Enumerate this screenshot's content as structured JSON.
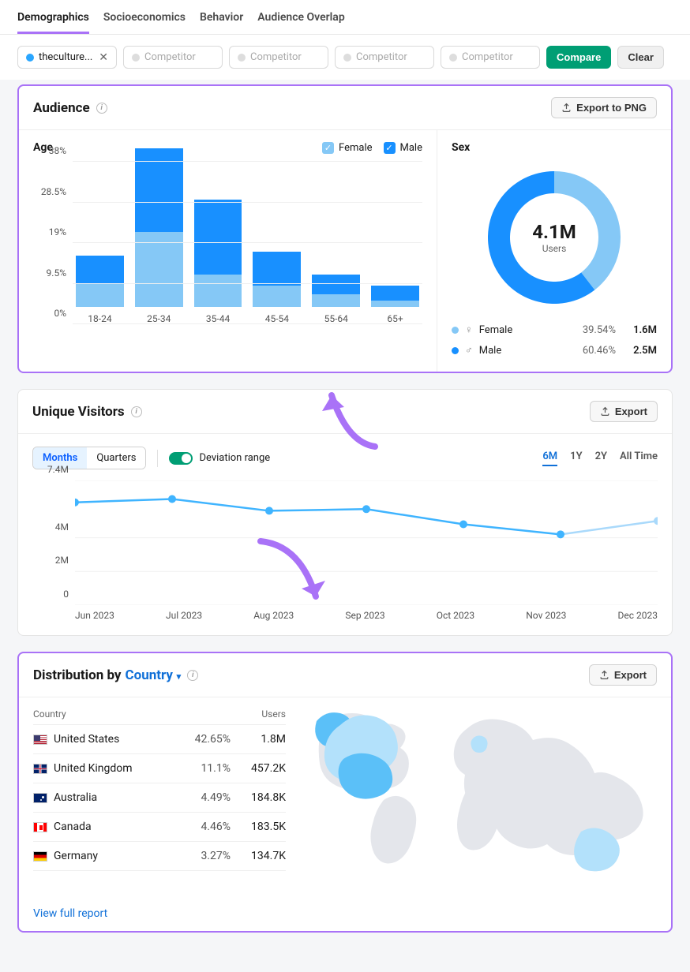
{
  "tabs": {
    "items": [
      "Demographics",
      "Socioeconomics",
      "Behavior",
      "Audience Overlap"
    ],
    "active_index": 0
  },
  "filters": {
    "site_chip": {
      "label": "theculture...",
      "dot_color": "#2aa6ff"
    },
    "competitor_placeholder": "Competitor",
    "compare_label": "Compare",
    "clear_label": "Clear"
  },
  "audience": {
    "title": "Audience",
    "export_label": "Export to PNG",
    "age": {
      "title": "Age",
      "legend": {
        "female": "Female",
        "male": "Male"
      },
      "type": "stacked-bar",
      "categories": [
        "18-24",
        "25-34",
        "35-44",
        "45-54",
        "55-64",
        "65+"
      ],
      "female_values": [
        5.5,
        17.5,
        7.5,
        5.0,
        3.0,
        1.5
      ],
      "male_values": [
        6.5,
        19.5,
        17.5,
        8.0,
        4.5,
        3.5
      ],
      "y_ticks": [
        0,
        9.5,
        19,
        28.5,
        38
      ],
      "y_tick_labels": [
        "0%",
        "9.5%",
        "19%",
        "28.5%",
        "38%"
      ],
      "ymax": 38,
      "colors": {
        "female": "#85c8f6",
        "male": "#1890ff"
      },
      "grid_color": "#efefef"
    },
    "sex": {
      "title": "Sex",
      "type": "donut",
      "center_value": "4.1M",
      "center_label": "Users",
      "segments": [
        {
          "name": "Female",
          "pct": 39.54,
          "pct_label": "39.54%",
          "count": "1.6M",
          "color": "#85c8f6",
          "symbol": "♀"
        },
        {
          "name": "Male",
          "pct": 60.46,
          "pct_label": "60.46%",
          "count": "2.5M",
          "color": "#1890ff",
          "symbol": "♂"
        }
      ],
      "donut_thickness": 28
    }
  },
  "unique_visitors": {
    "title": "Unique Visitors",
    "export_label": "Export",
    "period_segmented": {
      "options": [
        "Months",
        "Quarters"
      ],
      "active": 0
    },
    "deviation_label": "Deviation range",
    "ranges": [
      "6M",
      "1Y",
      "2Y",
      "All Time"
    ],
    "range_active": 0,
    "line": {
      "type": "line",
      "x_labels": [
        "Jun 2023",
        "Jul 2023",
        "Aug 2023",
        "Sep 2023",
        "Oct 2023",
        "Nov 2023",
        "Dec 2023"
      ],
      "y_ticks": [
        0,
        2,
        4,
        7.4
      ],
      "y_tick_labels": [
        "0",
        "2M",
        "4M",
        "7.4M"
      ],
      "ymax": 7.4,
      "values": [
        6.1,
        6.3,
        5.6,
        5.7,
        4.8,
        4.2,
        5.0
      ],
      "color": "#3fb4ff",
      "last_faded_color": "#a9d9fb",
      "point_radius": 5
    }
  },
  "distribution": {
    "title_prefix": "Distribution by",
    "dimension": "Country",
    "export_label": "Export",
    "table": {
      "headers": {
        "country": "Country",
        "users": "Users"
      },
      "rows": [
        {
          "flag": "us",
          "name": "United States",
          "pct": "42.65%",
          "users": "1.8M"
        },
        {
          "flag": "gb",
          "name": "United Kingdom",
          "pct": "11.1%",
          "users": "457.2K"
        },
        {
          "flag": "au",
          "name": "Australia",
          "pct": "4.49%",
          "users": "184.8K"
        },
        {
          "flag": "ca",
          "name": "Canada",
          "pct": "4.46%",
          "users": "183.5K"
        },
        {
          "flag": "de",
          "name": "Germany",
          "pct": "3.27%",
          "users": "134.7K"
        }
      ]
    },
    "view_full_label": "View full report",
    "map": {
      "highlight_primary": "#5bc0f8",
      "highlight_secondary": "#b3e1fb",
      "base_color": "#e4e6eb"
    }
  },
  "flags": {
    "us": {
      "bg": "#fff",
      "overlay": "repeating-linear-gradient(#b22234 0 1.2px,#fff 1.2px 2.4px)",
      "canton": "#3c3b6e"
    },
    "gb": {
      "bg": "#012169"
    },
    "au": {
      "bg": "#012169"
    },
    "ca": {
      "bg": "#fff",
      "side": "#ff0000"
    },
    "de": {
      "stripes": [
        "#000000",
        "#dd0000",
        "#ffce00"
      ]
    }
  },
  "accent_purple": "#a972f7"
}
